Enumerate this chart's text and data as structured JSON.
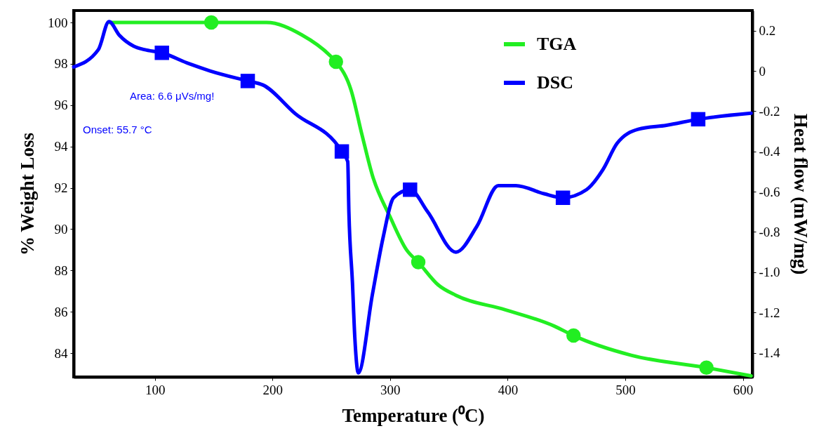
{
  "chart_data": {
    "type": "line",
    "xlabel": "Temperature (⁰C)",
    "ylabel": "% Weight Loss",
    "y2label": "Heat flow (mW/mg)",
    "xlim": [
      31,
      608
    ],
    "xticks": [
      100,
      200,
      300,
      400,
      500,
      600
    ],
    "ylim": [
      82.85,
      100.58
    ],
    "yticks": [
      84,
      86,
      88,
      90,
      92,
      94,
      96,
      98,
      100
    ],
    "y2lim": [
      -1.52,
      0.3
    ],
    "y2ticks": [
      {
        "value": -1.4,
        "label": "-1.4"
      },
      {
        "value": -1.2,
        "label": "-1.2"
      },
      {
        "value": -1,
        "label": "-1.0"
      },
      {
        "value": -0.8,
        "label": "-0.8"
      },
      {
        "value": -0.6,
        "label": "-0.6"
      },
      {
        "value": -0.4,
        "label": "-0.4"
      },
      {
        "value": -0.2,
        "label": "-0.2"
      },
      {
        "value": 0,
        "label": "0"
      },
      0.2
    ],
    "legend": "top right",
    "grid": false,
    "annotations": [
      "Area: 6.6 μVs/mg!",
      "Onset: 55.7 °C"
    ],
    "series": [
      {
        "name": "TGA",
        "color": "#22ee22",
        "x": [
          61,
          148,
          195,
          225,
          249,
          254,
          267,
          276,
          285,
          300,
          314,
          324,
          341,
          356,
          398,
          440,
          456,
          505,
          569,
          607
        ],
        "values": [
          100,
          100,
          100,
          99.4,
          98.4,
          98.1,
          96.7,
          94.6,
          92.6,
          90.6,
          89.0,
          88.4,
          87.3,
          86.8,
          86.1,
          85.3,
          84.85,
          83.9,
          83.3,
          82.9
        ]
      },
      {
        "name": "DSC",
        "color": "#0000ff",
        "axis": "y2",
        "x": [
          31,
          52,
          61,
          70,
          82,
          91,
          106,
          129,
          147,
          179,
          192,
          219,
          259,
          264,
          265,
          268,
          270,
          273,
          285,
          294,
          303,
          317,
          332,
          356,
          374,
          392,
          407,
          431,
          447,
          467,
          481,
          493,
          511,
          535,
          562,
          607
        ],
        "values": [
          0.02,
          0.106,
          0.245,
          0.176,
          0.123,
          0.106,
          0.09,
          0.036,
          0,
          -0.05,
          -0.07,
          -0.21,
          -0.4,
          -0.45,
          -0.7,
          -1.05,
          -1.32,
          -1.5,
          -1.11,
          -0.83,
          -0.63,
          -0.59,
          -0.7,
          -0.9,
          -0.77,
          -0.57,
          -0.57,
          -0.61,
          -0.63,
          -0.59,
          -0.49,
          -0.36,
          -0.29,
          -0.27,
          -0.24,
          -0.21
        ]
      },
      {
        "type": "scatter",
        "color": "#22ee22",
        "marker": "circle",
        "x": [
          148,
          254,
          324,
          456,
          569
        ],
        "values": [
          100,
          98.1,
          88.4,
          84.85,
          83.3
        ]
      },
      {
        "type": "scatter",
        "color": "#0000ff",
        "marker": "square",
        "axis": "y2",
        "x": [
          106,
          179,
          259,
          317,
          447,
          562
        ],
        "values": [
          0.09,
          -0.05,
          -0.4,
          -0.59,
          -0.63,
          -0.24
        ]
      }
    ]
  }
}
